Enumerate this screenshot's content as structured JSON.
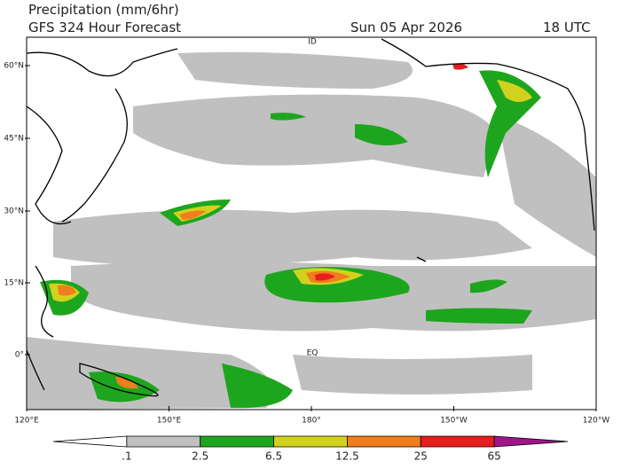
{
  "header": {
    "title": "Precipitation (mm/6hr)",
    "model": "GFS 324 Hour Forecast",
    "date": "Sun 05 Apr 2026",
    "time": "18 UTC"
  },
  "map": {
    "lat_labels": [
      "60°N",
      "45°N",
      "30°N",
      "15°N",
      "0°"
    ],
    "lon_labels": [
      "120°E",
      "150°E",
      "180°",
      "150°W",
      "120°W"
    ],
    "markers": [
      "ID",
      "EQ"
    ]
  },
  "colorbar": {
    "labels": [
      ".1",
      "2.5",
      "6.5",
      "12.5",
      "25",
      "65"
    ],
    "colors": [
      "#ffffff",
      "#c0c0c0",
      "#1ea51e",
      "#d2d21e",
      "#f07d1e",
      "#e61e1e",
      "#a0148c"
    ]
  }
}
